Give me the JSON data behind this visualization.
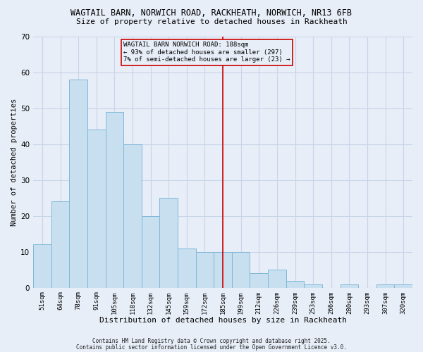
{
  "title_line1": "WAGTAIL BARN, NORWICH ROAD, RACKHEATH, NORWICH, NR13 6FB",
  "title_line2": "Size of property relative to detached houses in Rackheath",
  "xlabel": "Distribution of detached houses by size in Rackheath",
  "ylabel": "Number of detached properties",
  "bar_labels": [
    "51sqm",
    "64sqm",
    "78sqm",
    "91sqm",
    "105sqm",
    "118sqm",
    "132sqm",
    "145sqm",
    "159sqm",
    "172sqm",
    "185sqm",
    "199sqm",
    "212sqm",
    "226sqm",
    "239sqm",
    "253sqm",
    "266sqm",
    "280sqm",
    "293sqm",
    "307sqm",
    "320sqm"
  ],
  "bar_values": [
    12,
    24,
    58,
    44,
    49,
    40,
    20,
    25,
    11,
    10,
    10,
    10,
    4,
    5,
    2,
    1,
    0,
    1,
    0,
    1,
    1
  ],
  "bar_color": "#c8dff0",
  "bar_edge_color": "#7fb8d8",
  "vline_x_index": 10,
  "vline_color": "#cc0000",
  "annotation_title": "WAGTAIL BARN NORWICH ROAD: 188sqm",
  "annotation_line2": "← 93% of detached houses are smaller (297)",
  "annotation_line3": "7% of semi-detached houses are larger (23) →",
  "annotation_box_color": "#cc0000",
  "ylim": [
    0,
    70
  ],
  "yticks": [
    0,
    10,
    20,
    30,
    40,
    50,
    60,
    70
  ],
  "footer_line1": "Contains HM Land Registry data © Crown copyright and database right 2025.",
  "footer_line2": "Contains public sector information licensed under the Open Government Licence v3.0.",
  "background_color": "#e8eef8",
  "grid_color": "#c8d4e8"
}
